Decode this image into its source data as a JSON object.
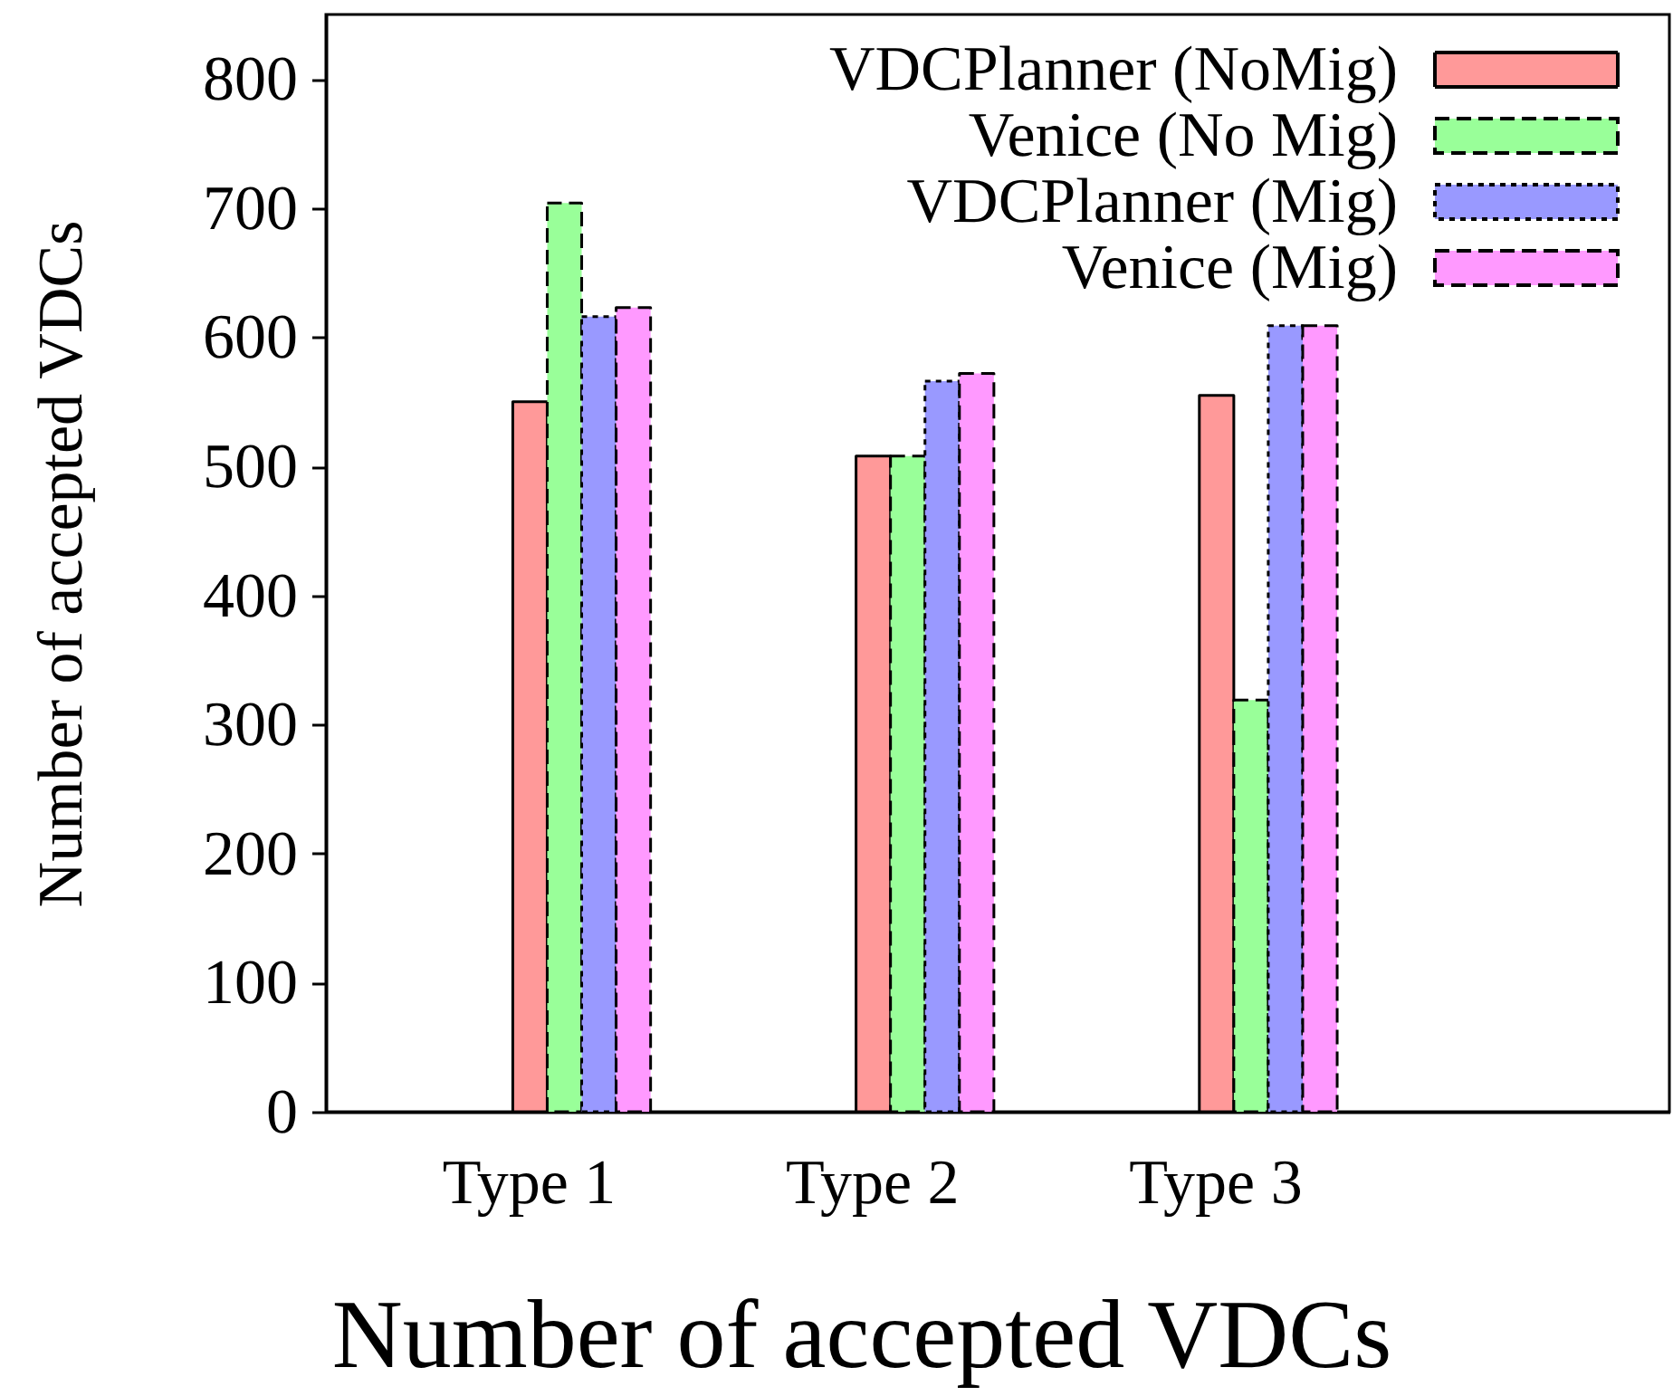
{
  "chart_data": {
    "type": "bar",
    "title": "Number of accepted VDCs",
    "ylabel": "Number of accepted VDCs",
    "categories": [
      "Type 1",
      "Type 2",
      "Type 3"
    ],
    "series": [
      {
        "name": "VDCPlanner (NoMig)",
        "color": "#ff9999",
        "line_style": "solid",
        "values": [
          550,
          508,
          555
        ]
      },
      {
        "name": "Venice (No Mig)",
        "color": "#99ff99",
        "line_style": "dashed",
        "values": [
          704,
          508,
          319
        ]
      },
      {
        "name": "VDCPlanner (Mig)",
        "color": "#9999ff",
        "line_style": "dotted",
        "values": [
          616,
          566,
          609
        ]
      },
      {
        "name": "Venice (Mig)",
        "color": "#ff99ff",
        "line_style": "dashed",
        "values": [
          623,
          572,
          609
        ]
      }
    ],
    "ylim": [
      0,
      850
    ],
    "yticks": [
      0,
      100,
      200,
      300,
      400,
      500,
      600,
      700,
      800
    ],
    "legend": "top right"
  }
}
